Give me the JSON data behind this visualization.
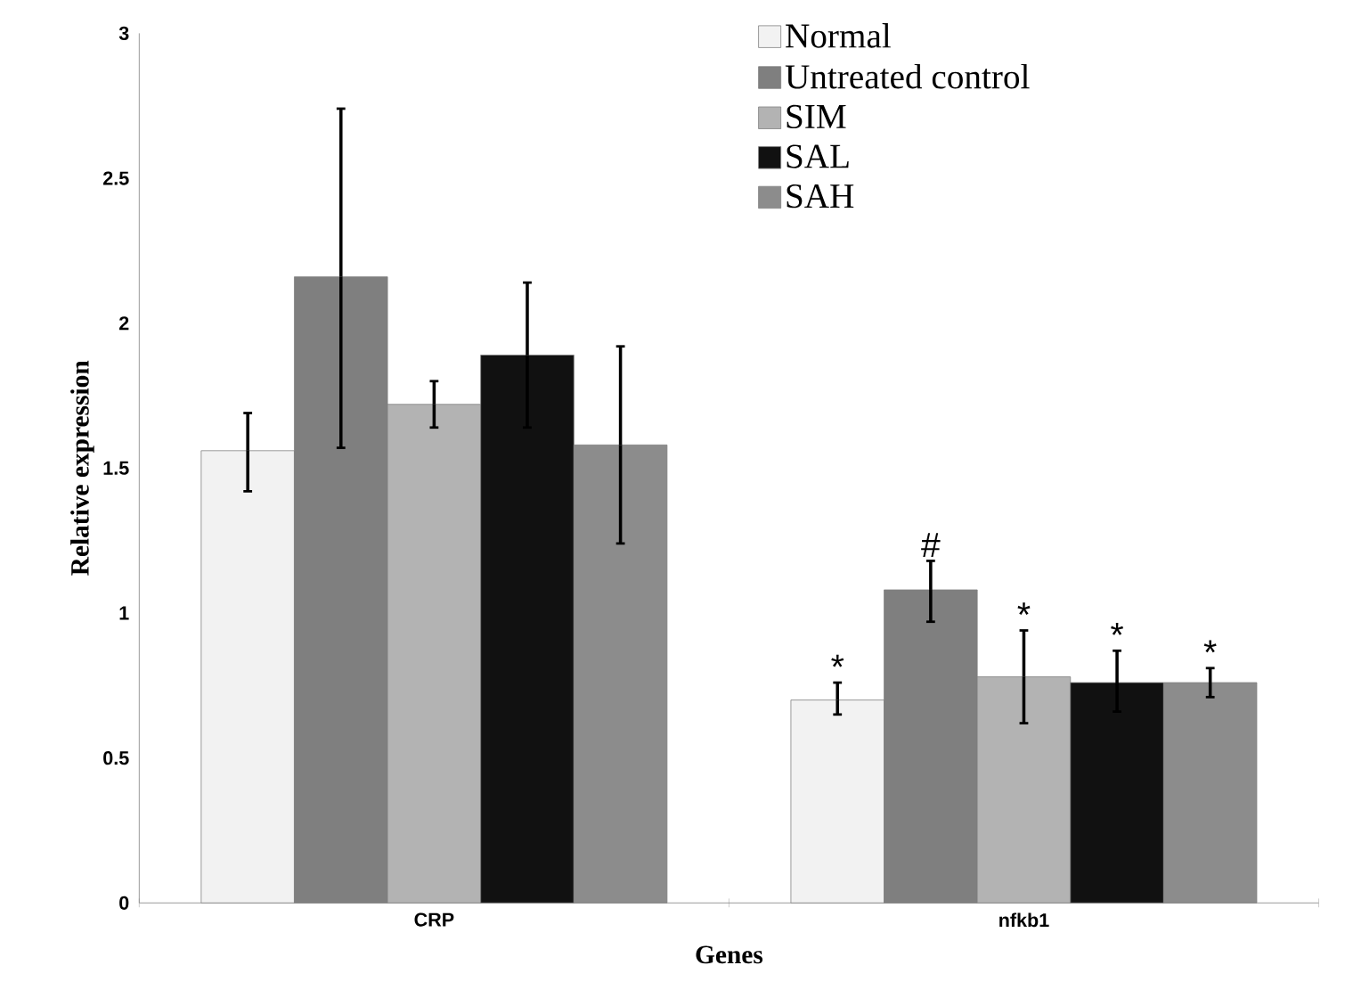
{
  "chart_data": {
    "type": "bar",
    "xlabel": "Genes",
    "ylabel": "Relative expression",
    "categories": [
      "CRP",
      "nfkb1"
    ],
    "series": [
      {
        "name": "Normal",
        "color": "#f2f2f2",
        "values": [
          1.56,
          0.7
        ],
        "errors": [
          [
            1.42,
            1.69
          ],
          [
            0.65,
            0.76
          ]
        ],
        "value_labels": [
          null,
          "*"
        ]
      },
      {
        "name": "Untreated control",
        "color": "#7f7f7f",
        "values": [
          2.16,
          1.08
        ],
        "errors": [
          [
            1.57,
            2.74
          ],
          [
            0.97,
            1.18
          ]
        ],
        "value_labels": [
          null,
          "#"
        ]
      },
      {
        "name": "SIM",
        "color": "#b3b3b3",
        "values": [
          1.72,
          0.78
        ],
        "errors": [
          [
            1.64,
            1.8
          ],
          [
            0.62,
            0.94
          ]
        ],
        "value_labels": [
          null,
          "*"
        ]
      },
      {
        "name": "SAL",
        "color": "#111111",
        "values": [
          1.89,
          0.76
        ],
        "errors": [
          [
            1.64,
            2.14
          ],
          [
            0.66,
            0.87
          ]
        ],
        "value_labels": [
          null,
          "*"
        ]
      },
      {
        "name": "SAH",
        "color": "#8c8c8c",
        "values": [
          1.58,
          0.76
        ],
        "errors": [
          [
            1.24,
            1.92
          ],
          [
            0.71,
            0.81
          ]
        ],
        "value_labels": [
          null,
          "*"
        ]
      }
    ],
    "ylim": [
      0,
      3
    ],
    "yticks": [
      0,
      0.5,
      1,
      1.5,
      2,
      2.5,
      3
    ],
    "legend": "top right",
    "grid": false
  }
}
